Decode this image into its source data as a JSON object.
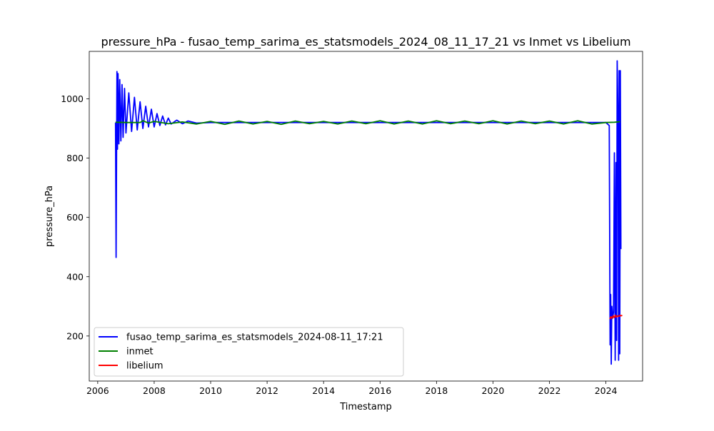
{
  "chart_data": {
    "type": "line",
    "title": "pressure_hPa - fusao_temp_sarima_es_statsmodels_2024_08_11_17_21 vs Inmet vs Libelium",
    "xlabel": "Timestamp",
    "ylabel": "pressure_hPa",
    "xlim": [
      2005.7,
      2025.3
    ],
    "ylim": [
      48,
      1160
    ],
    "xticks": [
      2006,
      2008,
      2010,
      2012,
      2014,
      2016,
      2018,
      2020,
      2022,
      2024
    ],
    "xtick_labels": [
      "2006",
      "2008",
      "2010",
      "2012",
      "2014",
      "2016",
      "2018",
      "2020",
      "2022",
      "2024"
    ],
    "yticks": [
      200,
      400,
      600,
      800,
      1000
    ],
    "ytick_labels": [
      "200",
      "400",
      "600",
      "800",
      "1000"
    ],
    "grid": false,
    "legend_position": "lower-left",
    "series": [
      {
        "name": "fusao_temp_sarima_es_statsmodels_2024-08-11_17:21",
        "color": "#0000ff",
        "x": [
          2006.63,
          2006.65,
          2006.68,
          2006.7,
          2006.72,
          2006.75,
          2006.78,
          2006.82,
          2006.86,
          2006.9,
          2006.95,
          2007.0,
          2007.1,
          2007.2,
          2007.3,
          2007.4,
          2007.5,
          2007.6,
          2007.7,
          2007.8,
          2007.9,
          2008.0,
          2008.1,
          2008.2,
          2008.3,
          2008.4,
          2008.5,
          2008.6,
          2008.8,
          2009.0,
          2009.2,
          2009.5,
          2010.0,
          2012.0,
          2014.0,
          2016.0,
          2018.0,
          2020.0,
          2022.0,
          2024.0,
          2024.12,
          2024.15,
          2024.17,
          2024.19,
          2024.21,
          2024.24,
          2024.27,
          2024.3,
          2024.33,
          2024.36,
          2024.38,
          2024.4,
          2024.43,
          2024.45,
          2024.47,
          2024.49,
          2024.51,
          2024.53
        ],
        "y": [
          920,
          465,
          1092,
          830,
          1085,
          848,
          1065,
          858,
          1048,
          870,
          1035,
          885,
          1020,
          890,
          1005,
          895,
          990,
          900,
          975,
          905,
          965,
          905,
          950,
          910,
          942,
          912,
          935,
          915,
          928,
          916,
          925,
          918,
          920,
          920,
          920,
          920,
          920,
          920,
          920,
          920,
          910,
          170,
          340,
          105,
          300,
          260,
          280,
          818,
          118,
          785,
          185,
          1128,
          930,
          118,
          1095,
          140,
          1095,
          493
        ]
      },
      {
        "name": "inmet",
        "color": "#008000",
        "x": [
          2006.63,
          2007.0,
          2007.5,
          2007.6,
          2007.8,
          2008.0,
          2008.5,
          2009.0,
          2009.5,
          2010.0,
          2010.5,
          2011.0,
          2011.5,
          2012.0,
          2012.5,
          2013.0,
          2013.5,
          2014.0,
          2014.5,
          2015.0,
          2015.5,
          2016.0,
          2016.5,
          2017.0,
          2017.5,
          2018.0,
          2018.5,
          2019.0,
          2019.5,
          2020.0,
          2020.5,
          2021.0,
          2021.5,
          2022.0,
          2022.5,
          2023.0,
          2023.5,
          2024.0,
          2024.3,
          2024.5
        ],
        "y": [
          921,
          920,
          920,
          926,
          918,
          924,
          916,
          922,
          915,
          924,
          914,
          925,
          915,
          924,
          914,
          925,
          916,
          924,
          915,
          925,
          916,
          926,
          915,
          925,
          915,
          926,
          916,
          925,
          916,
          926,
          915,
          925,
          916,
          925,
          915,
          926,
          915,
          920,
          921,
          923
        ]
      },
      {
        "name": "libelium",
        "color": "#ff0000",
        "x": [
          2024.14,
          2024.18,
          2024.22,
          2024.26,
          2024.3,
          2024.34,
          2024.38,
          2024.42,
          2024.46,
          2024.5,
          2024.54,
          2024.58
        ],
        "y": [
          257,
          265,
          260,
          268,
          262,
          270,
          264,
          268,
          266,
          270,
          268,
          270
        ]
      }
    ]
  }
}
